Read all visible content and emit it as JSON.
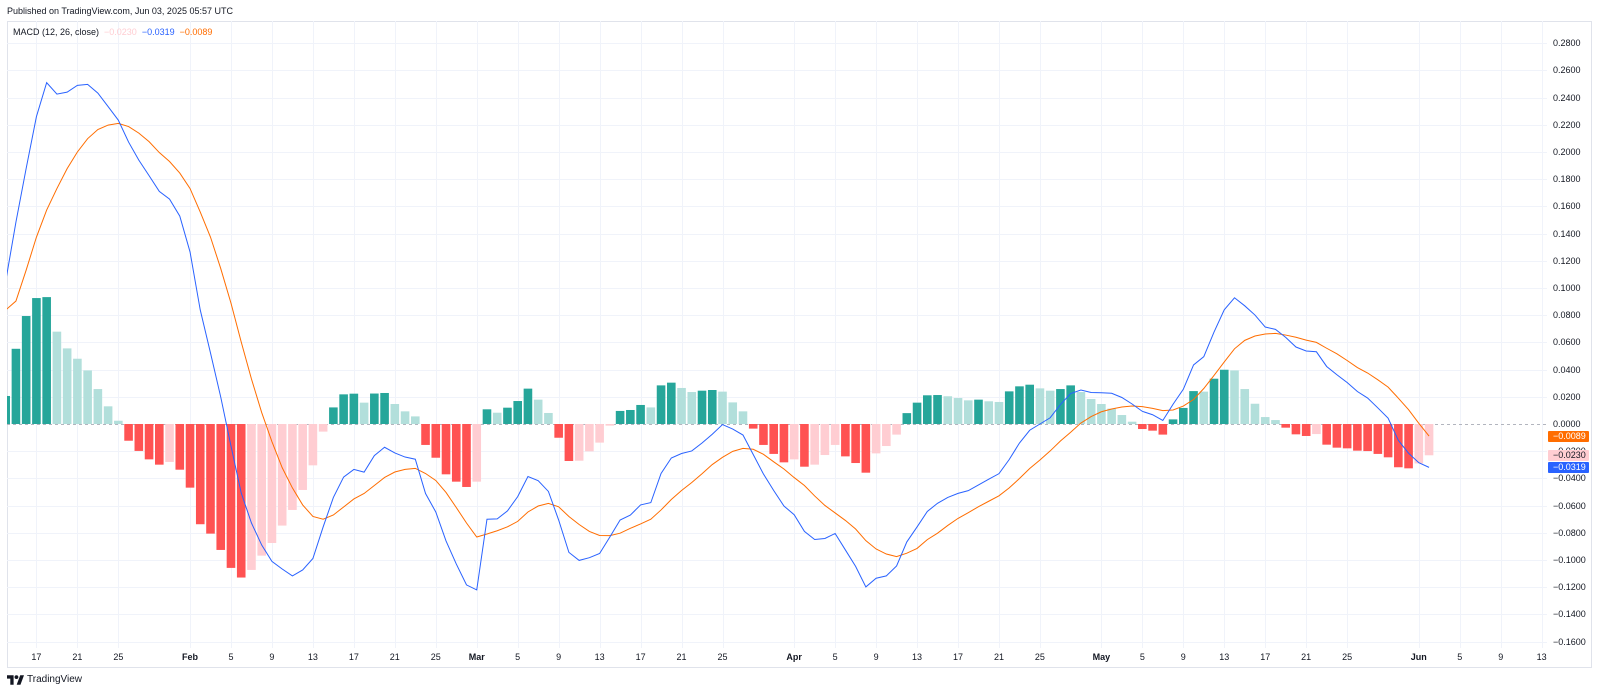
{
  "header": {
    "published": "Published on TradingView.com, Jun 03, 2025 05:57 UTC"
  },
  "legend": {
    "title": "MACD (12, 26, close)",
    "histogram_value": "−0.0230",
    "macd_value": "−0.0319",
    "signal_value": "−0.0089"
  },
  "colors": {
    "macd_line": "#2962ff",
    "signal_line": "#ff6d00",
    "hist_pos_rising": "#26a69a",
    "hist_pos_falling": "#b2dfdb",
    "hist_neg_falling": "#ff5252",
    "hist_neg_rising": "#ffcdd2",
    "grid": "#f0f3fa",
    "zero_line": "#b2b5be"
  },
  "price_axis": {
    "labels": [
      "0.2800",
      "0.2600",
      "0.2400",
      "0.2200",
      "0.2000",
      "0.1800",
      "0.1600",
      "0.1400",
      "0.1200",
      "0.1000",
      "0.0800",
      "0.0600",
      "0.0400",
      "0.0200",
      "0.0000",
      "−0.0200",
      "−0.0400",
      "−0.0600",
      "−0.0800",
      "−0.1000",
      "−0.1200",
      "−0.1400",
      "−0.1600"
    ],
    "badges": [
      {
        "name": "signal-value-badge",
        "label": "−0.0089",
        "value": -0.0089,
        "bg": "#ff6d00",
        "fg": "#ffffff"
      },
      {
        "name": "histogram-value-badge",
        "label": "−0.0230",
        "value": -0.023,
        "bg": "#ffcdd2",
        "fg": "#131722"
      },
      {
        "name": "macd-value-badge",
        "label": "−0.0319",
        "value": -0.0319,
        "bg": "#2962ff",
        "fg": "#ffffff"
      }
    ]
  },
  "time_axis": {
    "ticks": [
      {
        "label": "17",
        "index": 3
      },
      {
        "label": "21",
        "index": 7
      },
      {
        "label": "25",
        "index": 11
      },
      {
        "label": "Feb",
        "index": 18,
        "major": true
      },
      {
        "label": "5",
        "index": 22
      },
      {
        "label": "9",
        "index": 26
      },
      {
        "label": "13",
        "index": 30
      },
      {
        "label": "17",
        "index": 34
      },
      {
        "label": "21",
        "index": 38
      },
      {
        "label": "25",
        "index": 42
      },
      {
        "label": "Mar",
        "index": 46,
        "major": true
      },
      {
        "label": "5",
        "index": 50
      },
      {
        "label": "9",
        "index": 54
      },
      {
        "label": "13",
        "index": 58
      },
      {
        "label": "17",
        "index": 62
      },
      {
        "label": "21",
        "index": 66
      },
      {
        "label": "25",
        "index": 70
      },
      {
        "label": "Apr",
        "index": 77,
        "major": true
      },
      {
        "label": "5",
        "index": 81
      },
      {
        "label": "9",
        "index": 85
      },
      {
        "label": "13",
        "index": 89
      },
      {
        "label": "17",
        "index": 93
      },
      {
        "label": "21",
        "index": 97
      },
      {
        "label": "25",
        "index": 101
      },
      {
        "label": "May",
        "index": 107,
        "major": true
      },
      {
        "label": "5",
        "index": 111
      },
      {
        "label": "9",
        "index": 115
      },
      {
        "label": "13",
        "index": 119
      },
      {
        "label": "17",
        "index": 123
      },
      {
        "label": "21",
        "index": 127
      },
      {
        "label": "25",
        "index": 131
      },
      {
        "label": "Jun",
        "index": 138,
        "major": true
      },
      {
        "label": "5",
        "index": 142
      },
      {
        "label": "9",
        "index": 146
      },
      {
        "label": "13",
        "index": 150
      }
    ]
  },
  "footer": {
    "brand": "TradingView"
  },
  "chart_data": {
    "type": "line",
    "title": "MACD (12, 26, close)",
    "xlabel": "",
    "ylabel": "",
    "ylim": [
      -0.165,
      0.285
    ],
    "grid": true,
    "zero_line": true,
    "legend_position": "top-left",
    "x_tick_labels": [
      "17",
      "21",
      "25",
      "Feb",
      "5",
      "9",
      "13",
      "17",
      "21",
      "25",
      "Mar",
      "5",
      "9",
      "13",
      "17",
      "21",
      "25",
      "Apr",
      "5",
      "9",
      "13",
      "17",
      "21",
      "25",
      "May",
      "5",
      "9",
      "13",
      "17",
      "21",
      "25",
      "Jun",
      "5",
      "9",
      "13"
    ],
    "series": [
      {
        "name": "Histogram",
        "type": "bar",
        "values": [
          0.0206,
          0.0553,
          0.0794,
          0.0926,
          0.0933,
          0.0679,
          0.0556,
          0.048,
          0.0394,
          0.0257,
          0.013,
          0.0024,
          -0.0123,
          -0.0198,
          -0.026,
          -0.0299,
          -0.0279,
          -0.0336,
          -0.0468,
          -0.0737,
          -0.0806,
          -0.0926,
          -0.1058,
          -0.1129,
          -0.1073,
          -0.0968,
          -0.0875,
          -0.0747,
          -0.0632,
          -0.0485,
          -0.0304,
          -0.0056,
          0.0122,
          0.0218,
          0.0223,
          0.0157,
          0.0224,
          0.0228,
          0.0147,
          0.0093,
          0.0056,
          -0.0154,
          -0.0248,
          -0.037,
          -0.0424,
          -0.0463,
          -0.0424,
          0.0108,
          0.0083,
          0.012,
          0.0169,
          0.026,
          0.0179,
          0.0081,
          -0.0101,
          -0.0272,
          -0.027,
          -0.0201,
          -0.0137,
          -0.0012,
          0.0096,
          0.0103,
          0.014,
          0.0122,
          0.0284,
          0.0304,
          0.0265,
          0.0235,
          0.0245,
          0.025,
          0.0238,
          0.0159,
          0.0093,
          -0.0034,
          -0.0154,
          -0.022,
          -0.0282,
          -0.026,
          -0.0314,
          -0.0299,
          -0.0228,
          -0.0154,
          -0.0238,
          -0.0287,
          -0.0358,
          -0.0216,
          -0.0162,
          -0.0078,
          0.008,
          0.0157,
          0.0211,
          0.0213,
          0.0204,
          0.0191,
          0.0174,
          0.0179,
          0.0167,
          0.0162,
          0.024,
          0.0277,
          0.0289,
          0.0262,
          0.0245,
          0.0257,
          0.0284,
          0.0235,
          0.0184,
          0.0147,
          0.0113,
          0.0066,
          0.0017,
          -0.0037,
          -0.0049,
          -0.0078,
          0.0034,
          0.0118,
          0.0242,
          0.0238,
          0.0333,
          0.0399,
          0.0394,
          0.0257,
          0.0149,
          0.0051,
          0.0029,
          -0.0027,
          -0.0076,
          -0.0088,
          -0.0074,
          -0.0152,
          -0.0174,
          -0.0179,
          -0.0196,
          -0.0199,
          -0.022,
          -0.0245,
          -0.0318,
          -0.0326,
          -0.029,
          -0.023
        ]
      },
      {
        "name": "MACD",
        "type": "line",
        "color": "#2962ff",
        "values": [
          0.105,
          0.1485,
          0.188,
          0.226,
          0.251,
          0.2426,
          0.244,
          0.249,
          0.2497,
          0.2433,
          0.2334,
          0.2234,
          0.2073,
          0.194,
          0.1826,
          0.171,
          0.1654,
          0.1529,
          0.1266,
          0.0838,
          0.0522,
          0.0198,
          -0.0162,
          -0.0507,
          -0.0728,
          -0.089,
          -0.101,
          -0.1066,
          -0.1117,
          -0.1073,
          -0.0989,
          -0.0757,
          -0.054,
          -0.039,
          -0.0334,
          -0.0354,
          -0.0232,
          -0.0171,
          -0.0213,
          -0.0243,
          -0.0259,
          -0.0511,
          -0.0647,
          -0.086,
          -0.1029,
          -0.1183,
          -0.122,
          -0.07,
          -0.0698,
          -0.0639,
          -0.0534,
          -0.0386,
          -0.0417,
          -0.0496,
          -0.0706,
          -0.0944,
          -0.1003,
          -0.0983,
          -0.0952,
          -0.0831,
          -0.0706,
          -0.067,
          -0.0595,
          -0.0578,
          -0.0364,
          -0.025,
          -0.0217,
          -0.0198,
          -0.014,
          -0.0075,
          -0.0004,
          -0.0037,
          -0.0081,
          -0.0224,
          -0.0368,
          -0.0489,
          -0.0603,
          -0.0667,
          -0.079,
          -0.0849,
          -0.0842,
          -0.0805,
          -0.0926,
          -0.1047,
          -0.1198,
          -0.1134,
          -0.1117,
          -0.1044,
          -0.0867,
          -0.0757,
          -0.0643,
          -0.0583,
          -0.054,
          -0.051,
          -0.049,
          -0.0448,
          -0.0406,
          -0.0365,
          -0.0261,
          -0.014,
          -0.0046,
          0.0,
          0.0046,
          0.0143,
          0.0224,
          0.025,
          0.0232,
          0.023,
          0.0226,
          0.0195,
          0.0147,
          0.0093,
          0.0068,
          0.0026,
          0.0145,
          0.0255,
          0.0434,
          0.0495,
          0.0676,
          0.084,
          0.0928,
          0.0869,
          0.0801,
          0.0713,
          0.0696,
          0.0637,
          0.0566,
          0.0537,
          0.0531,
          0.0423,
          0.0362,
          0.0305,
          0.0239,
          0.0191,
          0.0118,
          0.0043,
          -0.012,
          -0.0215,
          -0.0285,
          -0.0319
        ]
      },
      {
        "name": "Signal",
        "type": "line",
        "color": "#ff6d00",
        "values": [
          0.0838,
          0.0904,
          0.1132,
          0.1374,
          0.1573,
          0.1731,
          0.1878,
          0.2,
          0.2098,
          0.2165,
          0.2198,
          0.221,
          0.2187,
          0.2139,
          0.2076,
          0.1996,
          0.193,
          0.1845,
          0.1732,
          0.1558,
          0.1374,
          0.1143,
          0.0889,
          0.0603,
          0.0331,
          0.0084,
          -0.013,
          -0.0321,
          -0.047,
          -0.0595,
          -0.068,
          -0.07,
          -0.0669,
          -0.061,
          -0.0551,
          -0.0511,
          -0.0452,
          -0.0393,
          -0.0353,
          -0.0334,
          -0.0326,
          -0.0364,
          -0.0415,
          -0.0503,
          -0.0614,
          -0.0728,
          -0.0831,
          -0.0809,
          -0.0785,
          -0.0756,
          -0.0716,
          -0.0647,
          -0.0603,
          -0.0584,
          -0.0609,
          -0.068,
          -0.0739,
          -0.079,
          -0.082,
          -0.0821,
          -0.0803,
          -0.0767,
          -0.0735,
          -0.07,
          -0.0632,
          -0.0555,
          -0.0489,
          -0.043,
          -0.0366,
          -0.0298,
          -0.0245,
          -0.0201,
          -0.0179,
          -0.0186,
          -0.0223,
          -0.0278,
          -0.0331,
          -0.0394,
          -0.0452,
          -0.0529,
          -0.0599,
          -0.0654,
          -0.0709,
          -0.0772,
          -0.0858,
          -0.0919,
          -0.0956,
          -0.0975,
          -0.095,
          -0.0915,
          -0.085,
          -0.0803,
          -0.0746,
          -0.0694,
          -0.0652,
          -0.0608,
          -0.0568,
          -0.0528,
          -0.047,
          -0.0401,
          -0.0327,
          -0.0265,
          -0.0198,
          -0.0125,
          -0.0061,
          0.0007,
          0.0055,
          0.009,
          0.011,
          0.0125,
          0.0132,
          0.0128,
          0.0115,
          0.0098,
          0.0103,
          0.0132,
          0.018,
          0.0261,
          0.0357,
          0.0456,
          0.0553,
          0.0615,
          0.0647,
          0.0662,
          0.0666,
          0.0654,
          0.0638,
          0.0617,
          0.06,
          0.0557,
          0.0516,
          0.0467,
          0.0415,
          0.0375,
          0.0325,
          0.0271,
          0.019,
          0.0105,
          0.0005,
          -0.0089
        ]
      }
    ]
  }
}
